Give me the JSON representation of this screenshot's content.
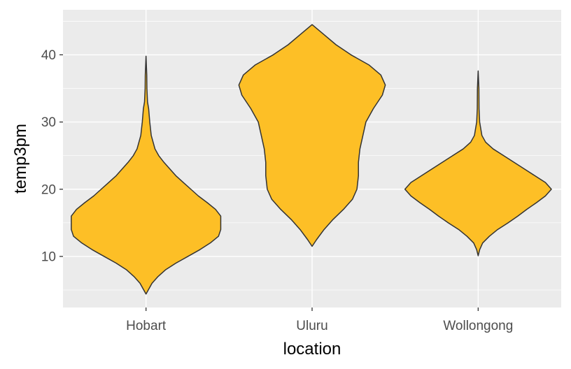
{
  "chart_data": {
    "type": "violin",
    "title": "",
    "xlabel": "location",
    "ylabel": "temp3pm",
    "categories": [
      "Hobart",
      "Uluru",
      "Wollongong"
    ],
    "ylim": [
      2.4,
      46.7
    ],
    "y_ticks": [
      10,
      20,
      30,
      40
    ],
    "grid": true,
    "legend": "none",
    "fill_color": "#FDBF26",
    "outline_color": "#333333",
    "panel_color": "#EBEBEB",
    "grid_color": "#FFFFFF",
    "series": [
      {
        "category": "Hobart",
        "min": 4.4,
        "max": 39.8,
        "profile": [
          [
            4.4,
            0.0
          ],
          [
            5.0,
            0.03
          ],
          [
            6.0,
            0.08
          ],
          [
            7.0,
            0.16
          ],
          [
            8.0,
            0.26
          ],
          [
            9.0,
            0.4
          ],
          [
            10.0,
            0.56
          ],
          [
            11.0,
            0.72
          ],
          [
            12.0,
            0.86
          ],
          [
            13.0,
            0.97
          ],
          [
            14.0,
            1.0
          ],
          [
            15.0,
            1.0
          ],
          [
            16.0,
            1.0
          ],
          [
            17.0,
            0.93
          ],
          [
            18.0,
            0.82
          ],
          [
            19.0,
            0.7
          ],
          [
            20.0,
            0.6
          ],
          [
            21.0,
            0.5
          ],
          [
            22.0,
            0.4
          ],
          [
            23.0,
            0.32
          ],
          [
            24.0,
            0.24
          ],
          [
            25.0,
            0.17
          ],
          [
            26.0,
            0.12
          ],
          [
            28.0,
            0.07
          ],
          [
            30.0,
            0.05
          ],
          [
            32.0,
            0.035
          ],
          [
            33.0,
            0.02
          ],
          [
            35.0,
            0.012
          ],
          [
            37.0,
            0.01
          ],
          [
            39.8,
            0.0
          ]
        ]
      },
      {
        "category": "Uluru",
        "min": 11.5,
        "max": 44.5,
        "profile": [
          [
            11.5,
            0.0
          ],
          [
            12.5,
            0.06
          ],
          [
            14.0,
            0.16
          ],
          [
            15.5,
            0.28
          ],
          [
            17.0,
            0.42
          ],
          [
            18.5,
            0.54
          ],
          [
            20.0,
            0.6
          ],
          [
            22.0,
            0.62
          ],
          [
            24.0,
            0.62
          ],
          [
            26.0,
            0.64
          ],
          [
            28.0,
            0.68
          ],
          [
            30.0,
            0.72
          ],
          [
            32.0,
            0.82
          ],
          [
            34.0,
            0.94
          ],
          [
            35.5,
            0.98
          ],
          [
            37.0,
            0.92
          ],
          [
            38.5,
            0.76
          ],
          [
            40.0,
            0.52
          ],
          [
            41.5,
            0.32
          ],
          [
            43.0,
            0.16
          ],
          [
            44.5,
            0.0
          ]
        ]
      },
      {
        "category": "Wollongong",
        "min": 10.1,
        "max": 37.6,
        "profile": [
          [
            10.1,
            0.0
          ],
          [
            11.0,
            0.02
          ],
          [
            12.0,
            0.06
          ],
          [
            13.0,
            0.15
          ],
          [
            14.0,
            0.26
          ],
          [
            15.0,
            0.4
          ],
          [
            16.0,
            0.53
          ],
          [
            17.0,
            0.65
          ],
          [
            18.0,
            0.78
          ],
          [
            19.0,
            0.9
          ],
          [
            20.0,
            0.98
          ],
          [
            21.0,
            0.9
          ],
          [
            22.0,
            0.76
          ],
          [
            23.0,
            0.62
          ],
          [
            24.0,
            0.48
          ],
          [
            25.0,
            0.34
          ],
          [
            26.0,
            0.2
          ],
          [
            27.0,
            0.1
          ],
          [
            28.0,
            0.05
          ],
          [
            30.0,
            0.02
          ],
          [
            32.0,
            0.012
          ],
          [
            35.0,
            0.01
          ],
          [
            37.6,
            0.0
          ]
        ]
      }
    ]
  }
}
